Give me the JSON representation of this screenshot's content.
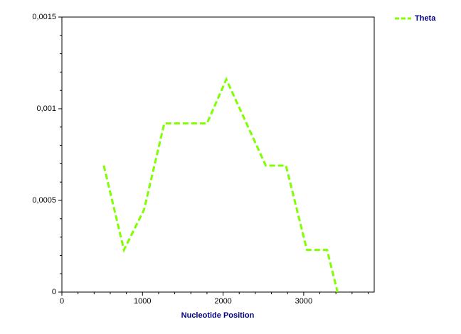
{
  "chart_data": {
    "type": "line",
    "x_label": "Nucleotide Position",
    "series": [
      {
        "name": "Theta",
        "color": "#80ff00",
        "x": [
          520,
          770,
          1020,
          1270,
          1800,
          2040,
          2530,
          2780,
          3040,
          3290,
          3420
        ],
        "values": [
          0.00069,
          0.00023,
          0.00045,
          0.00092,
          0.00092,
          0.00116,
          0.00069,
          0.00069,
          0.00023,
          0.00023,
          0
        ]
      }
    ],
    "xlim": [
      0,
      3875
    ],
    "xticks": [
      0,
      1000,
      2000,
      3000
    ],
    "xminorticks": [
      200,
      400,
      600,
      800,
      1200,
      1400,
      1600,
      1800,
      2200,
      2400,
      2600,
      2800,
      3200,
      3400,
      3600,
      3800
    ],
    "ylim": [
      0,
      0.0015
    ],
    "yticks": [
      0,
      {
        "value": 0.0005,
        "label": "0,0005"
      },
      {
        "value": 0.001,
        "label": "0,001"
      },
      {
        "value": 0.0015,
        "label": "0,0015"
      }
    ],
    "yminorticks": [
      0.0001,
      0.0002,
      0.0003,
      0.0004,
      0.0006,
      0.0007,
      0.0008,
      0.0009,
      0.0011,
      0.0012,
      0.0013,
      0.0014
    ],
    "legend": "top-right",
    "grid": false
  }
}
